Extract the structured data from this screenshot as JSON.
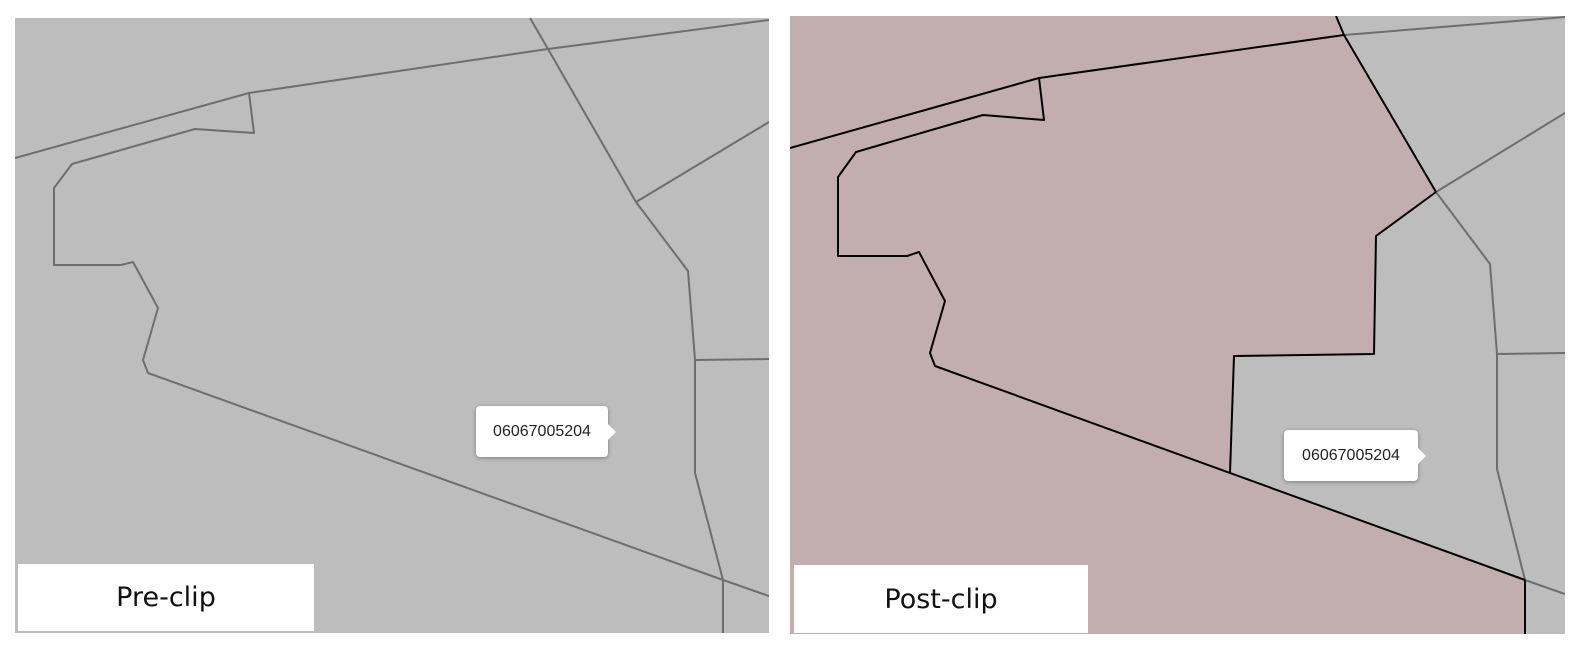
{
  "panels": [
    {
      "caption": "Pre-clip",
      "tooltip": "06067005204",
      "colors": {
        "background": "#bdbdbd",
        "boundary": "#6e6e6e"
      }
    },
    {
      "caption": "Post-clip",
      "tooltip": "06067005204",
      "colors": {
        "background": "#bdbdbd",
        "clipped_fill": "#c2aeae",
        "clipped_outline": "#000000",
        "boundary": "#6e6e6e"
      }
    }
  ]
}
